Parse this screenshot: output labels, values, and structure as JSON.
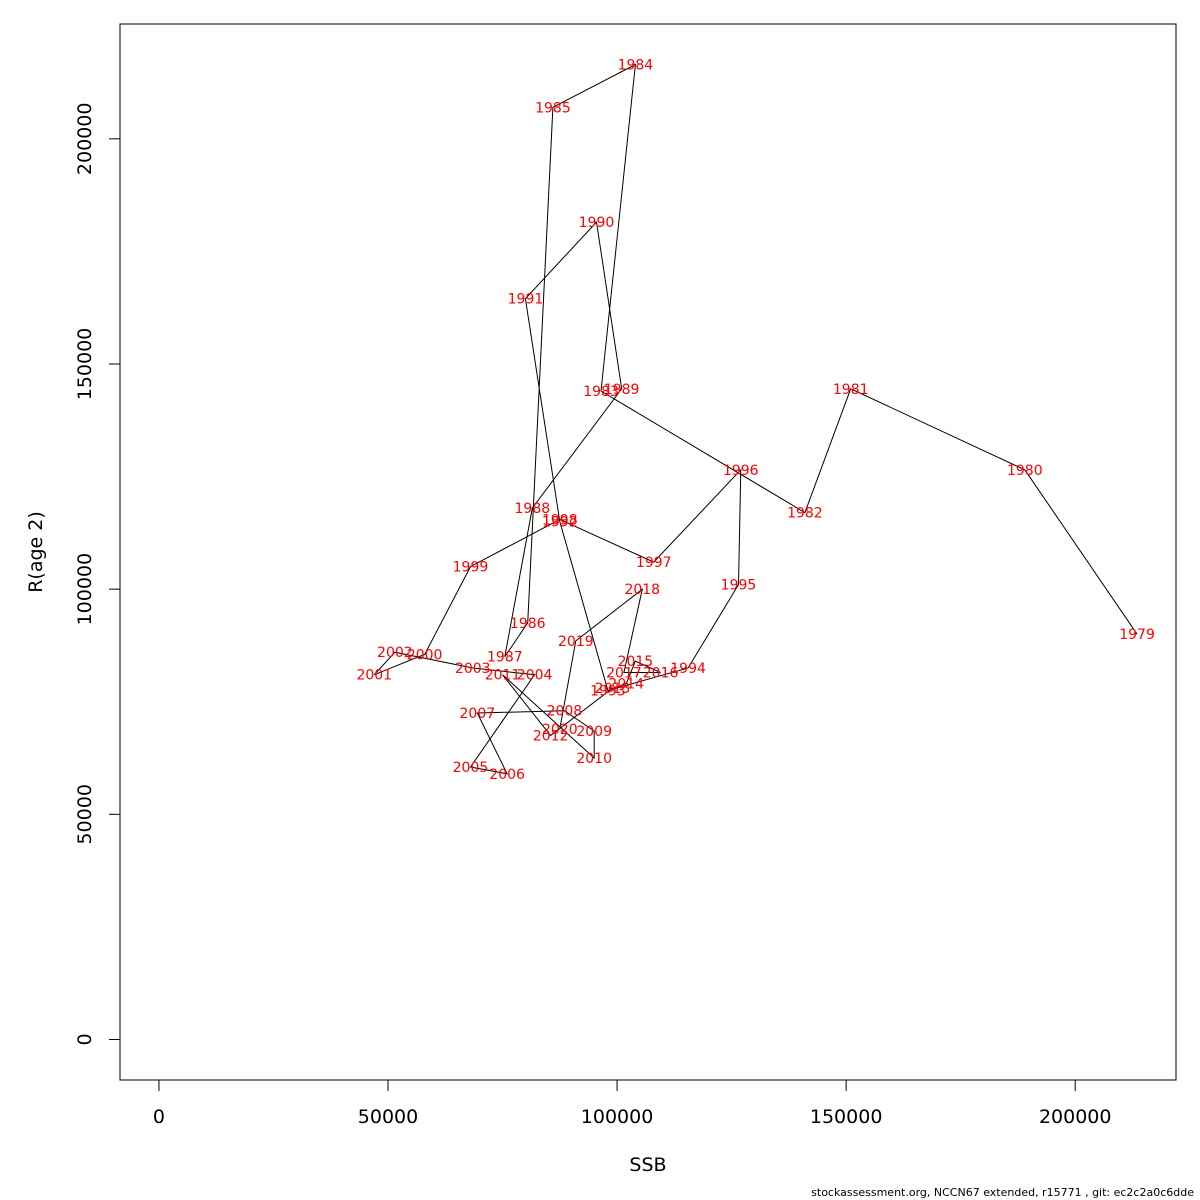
{
  "chart_data": {
    "type": "line",
    "xlabel": "SSB",
    "ylabel": "R(age 2)",
    "xlim": [
      -8500,
      222000
    ],
    "ylim": [
      -9000,
      225500
    ],
    "x_ticks": [
      0,
      50000,
      100000,
      150000,
      200000
    ],
    "y_ticks": [
      0,
      50000,
      100000,
      150000,
      200000
    ],
    "x_tick_labels": [
      "0",
      "50000",
      "100000",
      "150000",
      "200000"
    ],
    "y_tick_labels": [
      "0",
      "50000",
      "100000",
      "150000",
      "200000"
    ],
    "grid": false,
    "line_color": "#000000",
    "label_color": "#ff0000",
    "points": [
      {
        "year": "1979",
        "x": 213500,
        "y": 90000
      },
      {
        "year": "1980",
        "x": 189000,
        "y": 126500
      },
      {
        "year": "1981",
        "x": 151000,
        "y": 144500
      },
      {
        "year": "1982",
        "x": 141000,
        "y": 117000
      },
      {
        "year": "1983",
        "x": 96500,
        "y": 144000
      },
      {
        "year": "1984",
        "x": 104000,
        "y": 216500
      },
      {
        "year": "1985",
        "x": 86000,
        "y": 207000
      },
      {
        "year": "1986",
        "x": 80500,
        "y": 92500
      },
      {
        "year": "1987",
        "x": 75500,
        "y": 85000
      },
      {
        "year": "1988",
        "x": 81500,
        "y": 118000
      },
      {
        "year": "1989",
        "x": 101000,
        "y": 144500
      },
      {
        "year": "1990",
        "x": 95500,
        "y": 181500
      },
      {
        "year": "1991",
        "x": 80000,
        "y": 164500
      },
      {
        "year": "1992",
        "x": 87500,
        "y": 115000
      },
      {
        "year": "1993",
        "x": 98000,
        "y": 77500
      },
      {
        "year": "1994",
        "x": 115500,
        "y": 82500
      },
      {
        "year": "1995",
        "x": 126500,
        "y": 101000
      },
      {
        "year": "1996",
        "x": 127000,
        "y": 126500
      },
      {
        "year": "1997",
        "x": 108000,
        "y": 106000
      },
      {
        "year": "1998",
        "x": 87500,
        "y": 115500
      },
      {
        "year": "1999",
        "x": 68000,
        "y": 105000
      },
      {
        "year": "2000",
        "x": 58000,
        "y": 85500
      },
      {
        "year": "2001",
        "x": 47000,
        "y": 81000
      },
      {
        "year": "2002",
        "x": 51500,
        "y": 86000
      },
      {
        "year": "2003",
        "x": 68500,
        "y": 82500
      },
      {
        "year": "2004",
        "x": 82000,
        "y": 81000
      },
      {
        "year": "2005",
        "x": 68000,
        "y": 60500
      },
      {
        "year": "2006",
        "x": 76000,
        "y": 59000
      },
      {
        "year": "2007",
        "x": 69500,
        "y": 72500
      },
      {
        "year": "2008",
        "x": 88500,
        "y": 73000
      },
      {
        "year": "2009",
        "x": 95000,
        "y": 68500
      },
      {
        "year": "2010",
        "x": 95000,
        "y": 62500
      },
      {
        "year": "2011",
        "x": 75000,
        "y": 81000
      },
      {
        "year": "2012",
        "x": 85500,
        "y": 67500
      },
      {
        "year": "2013",
        "x": 99000,
        "y": 78000
      },
      {
        "year": "2014",
        "x": 102000,
        "y": 79000
      },
      {
        "year": "2015",
        "x": 104000,
        "y": 84000
      },
      {
        "year": "2016",
        "x": 109500,
        "y": 81500
      },
      {
        "year": "2017",
        "x": 101500,
        "y": 81500
      },
      {
        "year": "2018",
        "x": 105500,
        "y": 100000
      },
      {
        "year": "2019",
        "x": 91000,
        "y": 88500
      },
      {
        "year": "2020",
        "x": 87500,
        "y": 69000
      }
    ]
  },
  "footer": "stockassessment.org, NCCN67 extended, r15771 , git: ec2c2a0c6dde"
}
